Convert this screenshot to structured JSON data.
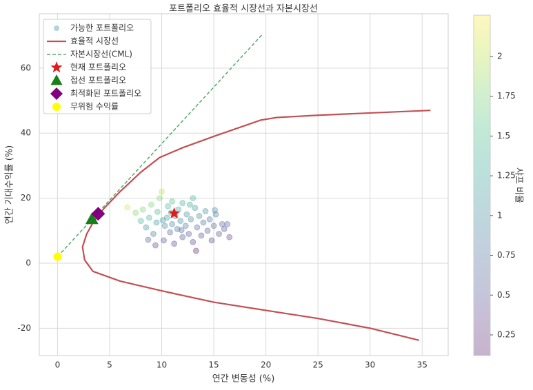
{
  "chart_data": {
    "type": "scatter",
    "title": "포트폴리오 효율적 시장선과 자본시장선",
    "x_label": "연간 변동성 (%)",
    "y_label": "연간 기대수익률 (%)",
    "xlim": [
      -1.75,
      37.5
    ],
    "ylim": [
      -28.4,
      76.7
    ],
    "xticks": [
      0,
      5,
      10,
      15,
      20,
      25,
      30,
      35
    ],
    "yticks": [
      -20,
      0,
      20,
      40,
      60
    ],
    "grid": true,
    "legend": "upper left",
    "colorbar": {
      "label": "샤프 비율",
      "colormap": "viridis",
      "clim": [
        0.12,
        2.26
      ],
      "ticks": [
        0.25,
        0.5,
        0.75,
        1.0,
        1.25,
        1.5,
        1.75,
        2.0
      ]
    },
    "series": [
      {
        "name": "가능한 포트폴리오",
        "marker": "circle",
        "alpha": 0.3,
        "x": [
          6.7,
          7.5,
          8,
          8.2,
          8.5,
          8.8,
          9,
          9.2,
          9.5,
          9.6,
          9.8,
          10,
          10.2,
          10.3,
          10.5,
          10.6,
          10.8,
          11,
          11,
          11.2,
          11.3,
          11.5,
          11.6,
          11.8,
          12,
          12,
          12.3,
          12.4,
          12.6,
          12.8,
          13,
          13,
          13.2,
          13.4,
          13.6,
          13.8,
          14,
          14.2,
          14.4,
          14.6,
          14.8,
          15,
          15.2,
          15.5,
          15.8,
          16,
          16.3,
          16.5,
          15.1,
          13.3,
          9.4,
          8.7,
          12.7,
          10.9,
          11.9,
          10.1
        ],
        "values": [
          17.2,
          15.5,
          13,
          16.5,
          11,
          14,
          18,
          9,
          12.5,
          15.8,
          20,
          22,
          7,
          11.5,
          14,
          17.5,
          9.5,
          12,
          19,
          6,
          14.5,
          10.5,
          16.5,
          13,
          8,
          18.5,
          11.5,
          15,
          9,
          13.5,
          20,
          6.5,
          17,
          11,
          14.5,
          8.5,
          12.5,
          16,
          10,
          13.5,
          7,
          11.5,
          15,
          9,
          12,
          10.5,
          12,
          8,
          16.3,
          3.8,
          5.5,
          7.2,
          18,
          15.5,
          10.2,
          13.2
        ],
        "c": [
          2.1,
          1.8,
          1.4,
          1.75,
          1.1,
          1.4,
          1.75,
          0.8,
          1.1,
          1.45,
          1.8,
          2.0,
          0.5,
          0.95,
          1.15,
          1.45,
          0.7,
          0.9,
          1.55,
          0.37,
          1.1,
          0.75,
          1.25,
          0.95,
          0.5,
          1.35,
          0.8,
          1.05,
          0.55,
          0.9,
          1.4,
          0.35,
          1.15,
          0.68,
          0.92,
          0.48,
          0.75,
          1.0,
          0.56,
          0.8,
          0.34,
          0.64,
          0.86,
          0.46,
          0.64,
          0.53,
          0.62,
          0.37,
          0.95,
          0.14,
          0.37,
          0.6,
          1.26,
          1.24,
          0.69,
          1.1
        ]
      },
      {
        "name": "효율적 시장선",
        "marker": "line",
        "color": "#c44e52",
        "x": [
          34.7,
          30,
          25,
          20,
          15,
          10,
          6,
          3.4,
          2.6,
          2.4,
          2.8,
          3.5,
          4.5,
          6,
          8,
          9.8,
          12,
          15,
          19.5,
          21,
          25,
          30,
          35.8
        ],
        "values": [
          -23.7,
          -20,
          -17,
          -14.5,
          -12,
          -8.5,
          -5.5,
          -2.5,
          1,
          5,
          9,
          13,
          17,
          22,
          28,
          32.5,
          35.5,
          39,
          44,
          44.8,
          45.5,
          46.2,
          47
        ]
      },
      {
        "name": "자본시장선(CML)",
        "marker": "dashed",
        "color": "#55a868",
        "x": [
          0,
          19.7
        ],
        "values": [
          2,
          70.5
        ]
      },
      {
        "name": "현재 포트폴리오",
        "marker": "star",
        "color": "#e31a1c",
        "x": [
          11.2
        ],
        "values": [
          15.3
        ]
      },
      {
        "name": "접선 포트폴리오",
        "marker": "triangle",
        "color": "#1a7f1a",
        "x": [
          3.3
        ],
        "values": [
          13.5
        ]
      },
      {
        "name": "최적화된 포트폴리오",
        "marker": "diamond",
        "color": "#800080",
        "x": [
          3.9
        ],
        "values": [
          15.2
        ]
      },
      {
        "name": "무위험 수익률",
        "marker": "circle",
        "color": "#ffff00",
        "x": [
          0
        ],
        "values": [
          2
        ]
      }
    ]
  }
}
